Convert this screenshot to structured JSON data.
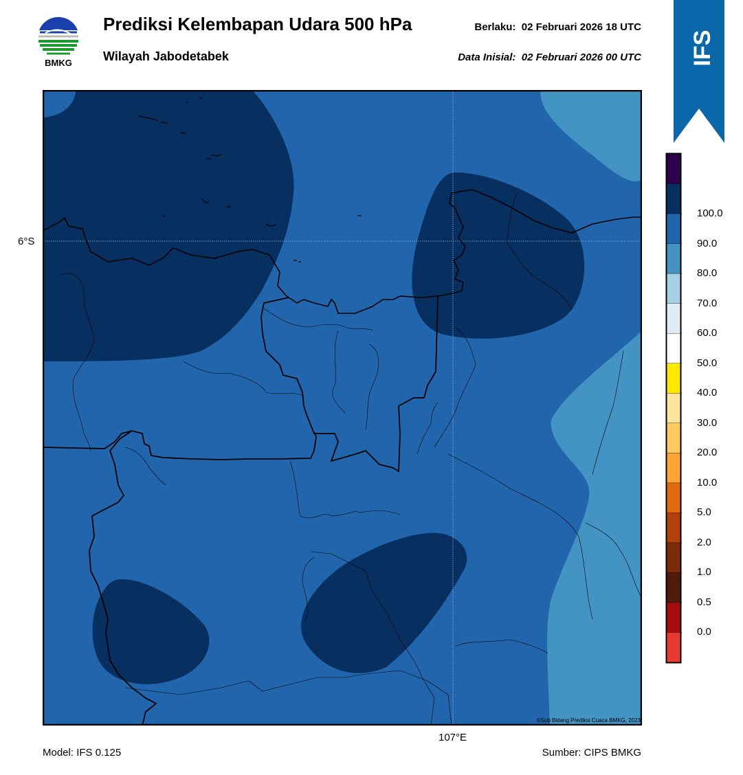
{
  "header": {
    "title": "Prediksi Kelembapan Udara 500 hPa",
    "subtitle": "Wilayah Jabodetabek",
    "valid_label": "Berlaku:",
    "valid_time": "02 Februari 2026 18 UTC",
    "init_label": "Data Inisial:",
    "init_time": "02 Februari 2026 00 UTC"
  },
  "logo": {
    "text": "BMKG",
    "icon": "bmkg-logo-icon"
  },
  "ribbon": {
    "text": "IFS",
    "color": "#0a68aa"
  },
  "map": {
    "lat_label": "6°S",
    "lon_label": "107°E",
    "copyright": "©Sub Bidang Prediksi Cuaca BMKG, 2023",
    "colors": {
      "band_80_90": "#2166ac",
      "band_90_100": "#073060",
      "band_70_80": "#4393c3"
    }
  },
  "footer": {
    "model": "Model: IFS 0.125",
    "source": "Sumber: CIPS BMKG"
  },
  "colorbar": {
    "tick_labels": [
      "100.0",
      "90.0",
      "80.0",
      "70.0",
      "60.0",
      "50.0",
      "40.0",
      "30.0",
      "20.0",
      "10.0",
      "5.0",
      "2.0",
      "1.0",
      "0.5",
      "0.0"
    ],
    "segment_colors": [
      "#2d004b",
      "#073060",
      "#2166ac",
      "#4393c3",
      "#a6d1e6",
      "#e0edf7",
      "#ffffff",
      "#ffe800",
      "#ffe4a0",
      "#ffc960",
      "#ffa535",
      "#e06a10",
      "#b3420a",
      "#7a2c08",
      "#4e1c08",
      "#a50d10",
      "#e83a2e"
    ]
  }
}
